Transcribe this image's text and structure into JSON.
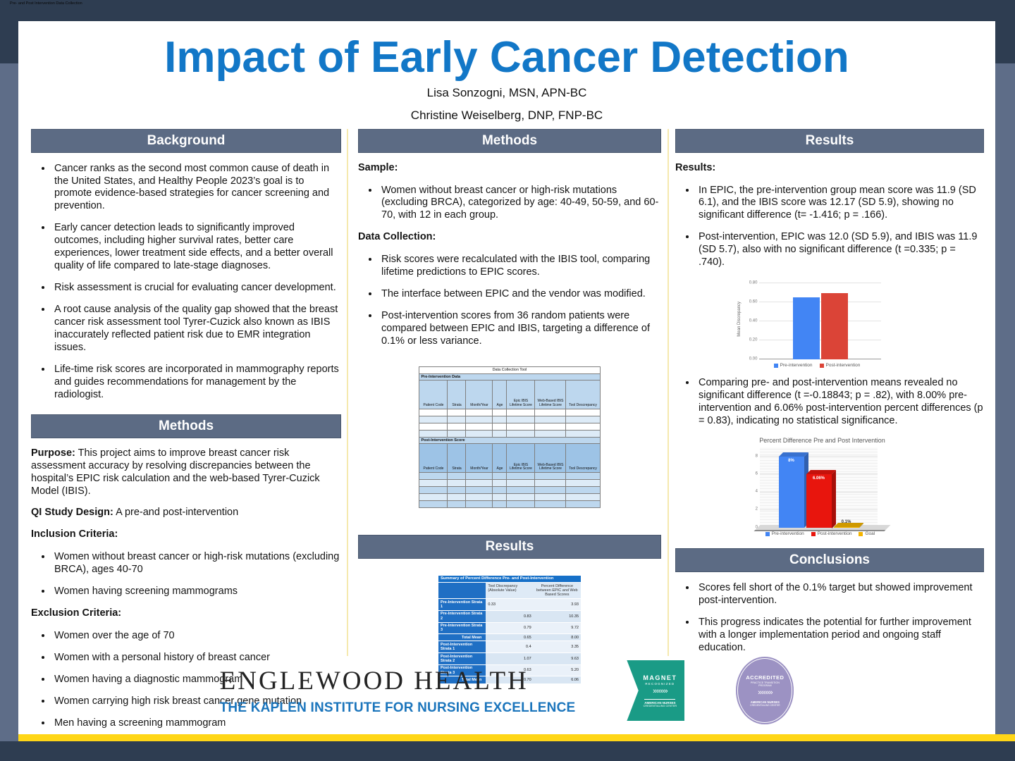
{
  "window": {
    "overlay_title": "Pre- and Post Intervention Data Collection"
  },
  "poster": {
    "title": "Impact of Early Cancer Detection",
    "authors": [
      "Lisa Sonzogni, MSN, APN-BC",
      "Christine Weiselberg, DNP, FNP-BC"
    ]
  },
  "colors": {
    "title_blue": "#1277C7",
    "section_bar": "#5C6B84",
    "page_margin": "#5E6D88",
    "top_band": "#2E3D51",
    "yellow_stripe": "#FFD617",
    "kaplen_blue": "#1B75BC",
    "magnet_teal": "#1A9B86",
    "accredited_purple": "#9C92C3"
  },
  "left": {
    "background": {
      "header": "Background",
      "bullets": [
        "Cancer ranks as the second most common cause of death in the United States, and Healthy People 2023’s goal is to promote evidence-based strategies for cancer screening and prevention.",
        "Early cancer detection leads to significantly improved outcomes, including higher survival rates, better care experiences, lower treatment side effects, and a better overall quality of life compared to late-stage diagnoses.",
        "Risk assessment is crucial for evaluating cancer development.",
        "A root cause analysis of the quality gap showed that the breast cancer risk assessment tool Tyrer-Cuzick also known as IBIS inaccurately reflected patient risk due to EMR integration issues.",
        "Life-time risk scores are incorporated in mammography reports and guides recommendations for management by the radiologist."
      ]
    },
    "methods": {
      "header": "Methods",
      "purpose_label": "Purpose:",
      "purpose_text": "This project aims to improve breast cancer risk assessment accuracy by resolving discrepancies between the hospital’s EPIC risk calculation and the web-based Tyrer-Cuzick Model (IBIS).",
      "design_label": "QI Study Design:",
      "design_text": "A pre-and post-intervention",
      "inclusion_label": "Inclusion Criteria:",
      "inclusion_bullets": [
        "Women without breast cancer or high-risk mutations (excluding BRCA), ages 40-70",
        "Women having screening mammograms"
      ],
      "exclusion_label": "Exclusion Criteria:",
      "exclusion_bullets": [
        "Women over the age of 70",
        "Women with a personal history of breast cancer",
        "Women having a diagnostic mammogram",
        "Women carrying high risk breast cancer gene mutation",
        "Men having a screening mammogram"
      ]
    }
  },
  "middle": {
    "methods": {
      "header": "Methods",
      "sample_label": "Sample:",
      "sample_bullets": [
        "Women without breast cancer or high-risk mutations (excluding BRCA), categorized by age: 40-49, 50-59, and 60-70, with 12 in each group."
      ],
      "collection_label": "Data Collection:",
      "collection_bullets": [
        "Risk scores were recalculated with the IBIS tool, comparing lifetime predictions to EPIC scores.",
        "The interface between EPIC and the vendor was modified.",
        "Post-intervention scores from 36 random patients were compared between EPIC and IBIS, targeting a difference of 0.1% or less variance."
      ]
    },
    "dct": {
      "title": "Data Collection Tool",
      "pre_section": "Pre-Intervention Data",
      "post_section": "Post-Intervention Score",
      "columns": [
        "Patient Code",
        "Strata",
        "Month/Year",
        "Age",
        "Epic IBIS Lifetime Score",
        "Web-Based IBIS Lifetime Score",
        "Tool Descrepancy"
      ]
    },
    "results": {
      "header": "Results",
      "table": {
        "title": "Summary of Percent Difference Pre- and Post-Intervention",
        "col1": "Tool Discrepancy (Absolute Value)",
        "col2": "Percent Difference between EPIC and Web Based Scores",
        "rows": [
          {
            "label": "Pre-Intervention Strata 1",
            "v1": "0.33",
            "v2": "3.93"
          },
          {
            "label": "Pre-Intervention Strata 2",
            "v1": "0.83",
            "v2": "10.35"
          },
          {
            "label": "Pre-Intervention Strata 3",
            "v1": "0.79",
            "v2": "9.72"
          },
          {
            "label": "Total Mean",
            "v1": "0.65",
            "v2": "8.00"
          },
          {
            "label": "Post-Intervention Strata 1",
            "v1": "0.4",
            "v2": "3.35"
          },
          {
            "label": "Post-Intervention Strata 2",
            "v1": "1.07",
            "v2": "9.63"
          },
          {
            "label": "Post-Intervention Strata 3",
            "v1": "0.63",
            "v2": "5.20"
          },
          {
            "label": "Total Mean",
            "v1": "0.70",
            "v2": "6.06"
          }
        ]
      }
    }
  },
  "right": {
    "results": {
      "header": "Results",
      "label": "Results:",
      "bullets": [
        "In EPIC, the pre-intervention group mean score was 11.9 (SD 6.1), and the IBIS score was 12.17 (SD 5.9), showing no significant difference (t= -1.416; p = .166).",
        "Post-intervention, EPIC was 12.0 (SD 5.9), and IBIS was 11.9 (SD 5.7), also with no significant difference (t =0.335; p = .740)."
      ],
      "bullet3": "Comparing pre- and post-intervention means revealed no significant difference (t =-0.18843; p = .82), with 8.00% pre-intervention and 6.06% post-intervention percent differences (p = 0.83), indicating no statistical significance."
    },
    "conclusions": {
      "header": "Conclusions",
      "bullets": [
        "Scores fell short of the 0.1% target but showed improvement post-intervention.",
        "This progress indicates the potential for further improvement with a longer implementation period and ongoing staff education."
      ]
    }
  },
  "footer": {
    "org_name": "ENGLEWOOD HEALTH",
    "org_sub": "THE KAPLEN INSTITUTE FOR NURSING EXCELLENCE",
    "magnet": {
      "line1": "MAGNET",
      "line2": "RECOGNIZED",
      "chevrons": "»»»»",
      "line3": "AMERICAN NURSES",
      "line4": "CREDENTIALING CENTER"
    },
    "accredited": {
      "line1": "ACCREDITED",
      "line2": "PRACTICE TRANSITION",
      "line3": "PROGRAM",
      "chevrons": "»»»»",
      "line4": "AMERICAN NURSES",
      "line5": "CREDENTIALING CENTER"
    }
  },
  "chart_data": [
    {
      "type": "bar",
      "title": "",
      "categories": [
        "Pre-intervention",
        "Post-intervention"
      ],
      "values": [
        0.65,
        0.7
      ],
      "colors": [
        "#4285F4",
        "#DB4437"
      ],
      "xlabel": "",
      "ylabel": "Mean Discrepancy",
      "yticks": [
        0,
        0.2,
        0.4,
        0.6,
        0.8
      ],
      "ytick_labels": [
        "0.00",
        "0.20",
        "0.40",
        "0.60",
        "0.80"
      ],
      "ylim": [
        0,
        0.85
      ],
      "grid": true,
      "legend": [
        "Pre-intervention",
        "Post-intervention"
      ],
      "legend_position": "bottom",
      "style": "2d"
    },
    {
      "type": "bar",
      "title": "Percent Difference Pre and Post Intervention",
      "categories": [
        "Pre-intervention",
        "Post-intervention",
        "Goal"
      ],
      "values": [
        8.0,
        6.06,
        0.1
      ],
      "bar_labels": [
        "8%",
        "6.06%",
        "0.1%"
      ],
      "colors": [
        "#4285F4",
        "#E8150D",
        "#F4B400"
      ],
      "xlabel": "",
      "ylabel": "",
      "yticks": [
        0,
        2,
        4,
        6,
        8
      ],
      "ytick_labels": [
        "0",
        "2",
        "4",
        "6",
        "8"
      ],
      "ylim": [
        0,
        9
      ],
      "grid": true,
      "legend": [
        "Pre-intervention",
        "Post-intervention",
        "Goal"
      ],
      "legend_position": "bottom",
      "style": "3d"
    }
  ]
}
